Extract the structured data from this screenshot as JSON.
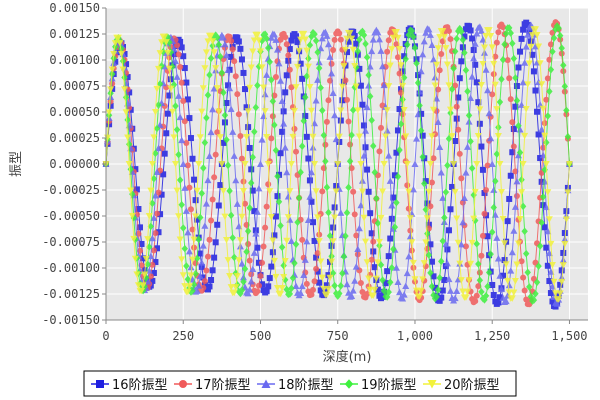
{
  "chart_data": {
    "type": "line",
    "xlabel": "深度(m)",
    "ylabel": "振型",
    "xlim": [
      0,
      1560
    ],
    "ylim": [
      -0.0015,
      0.0015
    ],
    "x_ticks": [
      {
        "value": 0,
        "label": "0"
      },
      {
        "value": 250,
        "label": "250"
      },
      {
        "value": 500,
        "label": "500"
      },
      {
        "value": 750,
        "label": "750"
      },
      {
        "value": 1000,
        "label": "1,000"
      },
      {
        "value": 1250,
        "label": "1,250"
      },
      {
        "value": 1500,
        "label": "1,500"
      }
    ],
    "y_ticks": [
      {
        "value": 0.0015,
        "label": "0.00150"
      },
      {
        "value": 0.00125,
        "label": "0.00125"
      },
      {
        "value": 0.001,
        "label": "0.00100"
      },
      {
        "value": 0.00075,
        "label": "0.00075"
      },
      {
        "value": 0.0005,
        "label": "0.00050"
      },
      {
        "value": 0.00025,
        "label": "0.00025"
      },
      {
        "value": 0,
        "label": "0.00000"
      },
      {
        "value": -0.00025,
        "label": "-0.00025"
      },
      {
        "value": -0.0005,
        "label": "-0.00050"
      },
      {
        "value": -0.00075,
        "label": "-0.00075"
      },
      {
        "value": -0.001,
        "label": "-0.00100"
      },
      {
        "value": -0.00125,
        "label": "-0.00125"
      },
      {
        "value": -0.0015,
        "label": "-0.00150"
      }
    ],
    "grid": true,
    "legend_position": "bottom",
    "background_color": "#e8e8e8",
    "series": [
      {
        "name": "16阶振型",
        "color": "#1f1fe0",
        "marker": "square",
        "mode": 16,
        "amp_start": 0.00116,
        "amp_end": 0.00138,
        "length": 1500
      },
      {
        "name": "17阶振型",
        "color": "#f05a5a",
        "marker": "circle",
        "mode": 17,
        "amp_start": 0.00118,
        "amp_end": 0.00137,
        "length": 1500
      },
      {
        "name": "18阶振型",
        "color": "#6a6af0",
        "marker": "triangle",
        "mode": 18,
        "amp_start": 0.0012,
        "amp_end": 0.00135,
        "length": 1500
      },
      {
        "name": "19阶振型",
        "color": "#3ef03e",
        "marker": "diamond",
        "mode": 19,
        "amp_start": 0.00121,
        "amp_end": 0.00133,
        "length": 1500
      },
      {
        "name": "20阶振型",
        "color": "#f2f23a",
        "marker": "triangle-down",
        "mode": 20,
        "amp_start": 0.00122,
        "amp_end": 0.00131,
        "length": 1500
      }
    ]
  }
}
